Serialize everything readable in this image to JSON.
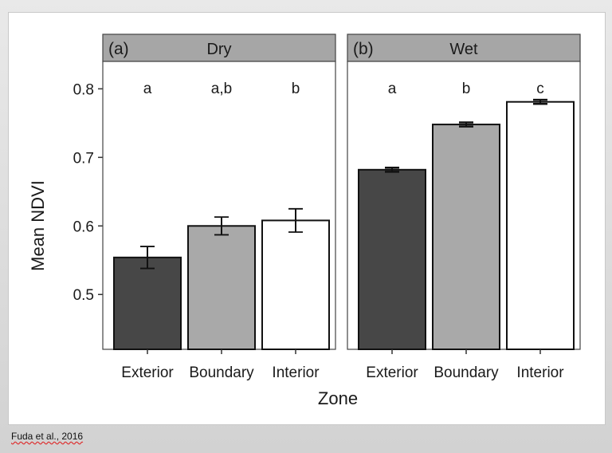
{
  "chart_data": {
    "type": "bar",
    "ylabel": "Mean NDVI",
    "xlabel": "Zone",
    "ylim": [
      0.42,
      0.84
    ],
    "yticks": [
      "0.5",
      "0.6",
      "0.7",
      "0.8"
    ],
    "categories": [
      "Exterior",
      "Boundary",
      "Interior"
    ],
    "colors": [
      "#474747",
      "#a9a9a9",
      "#ffffff"
    ],
    "panels": [
      {
        "tag": "(a)",
        "title": "Dry",
        "values": [
          0.554,
          0.6,
          0.608
        ],
        "errors": [
          0.016,
          0.013,
          0.017
        ],
        "letters": [
          "a",
          "a,b",
          "b"
        ]
      },
      {
        "tag": "(b)",
        "title": "Wet",
        "values": [
          0.682,
          0.748,
          0.781
        ],
        "errors": [
          0.003,
          0.003,
          0.003
        ],
        "letters": [
          "a",
          "b",
          "c"
        ]
      }
    ]
  },
  "credit": "Fuda et al., 2016"
}
